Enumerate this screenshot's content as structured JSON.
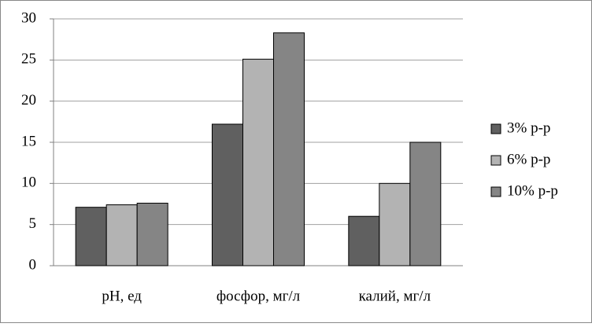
{
  "chart_data": {
    "type": "bar",
    "categories": [
      "pH, ед",
      "фосфор, мг/л",
      "калий, мг/л"
    ],
    "series": [
      {
        "name": "3% р-р",
        "color": "#606060",
        "values": [
          7.1,
          17.2,
          6.0
        ]
      },
      {
        "name": "6% р-р",
        "color": "#b3b3b3",
        "values": [
          7.4,
          25.1,
          10.0
        ]
      },
      {
        "name": "10% р-р",
        "color": "#858585",
        "values": [
          7.6,
          28.3,
          15.0
        ]
      }
    ],
    "ylim": [
      0,
      30
    ],
    "yticks": [
      0,
      5,
      10,
      15,
      20,
      25,
      30
    ],
    "grid": true,
    "legend": "right"
  }
}
